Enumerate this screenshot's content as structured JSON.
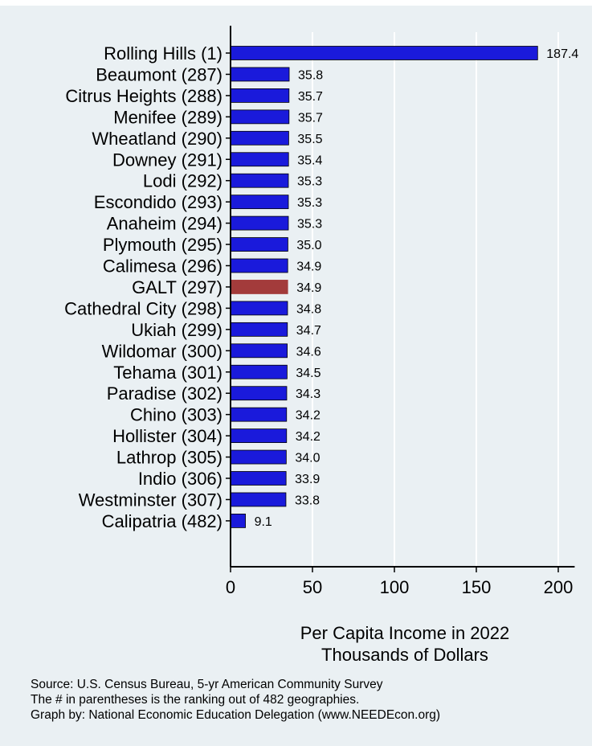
{
  "chart_data": {
    "type": "bar",
    "orientation": "horizontal",
    "categories": [
      "Rolling Hills  (1)",
      "Beaumont (287)",
      "Citrus Heights (288)",
      "Menifee (289)",
      "Wheatland (290)",
      "Downey (291)",
      "Lodi (292)",
      "Escondido (293)",
      "Anaheim (294)",
      "Plymouth (295)",
      "Calimesa (296)",
      "GALT (297)",
      "Cathedral City (298)",
      "Ukiah (299)",
      "Wildomar (300)",
      "Tehama (301)",
      "Paradise (302)",
      "Chino (303)",
      "Hollister (304)",
      "Lathrop (305)",
      "Indio (306)",
      "Westminster (307)",
      "Calipatria (482)"
    ],
    "values": [
      187.4,
      35.8,
      35.7,
      35.7,
      35.5,
      35.4,
      35.3,
      35.3,
      35.3,
      35.0,
      34.9,
      34.9,
      34.8,
      34.7,
      34.6,
      34.5,
      34.3,
      34.2,
      34.2,
      34.0,
      33.9,
      33.8,
      9.1
    ],
    "value_labels": [
      "187.4",
      "35.8",
      "35.7",
      "35.7",
      "35.5",
      "35.4",
      "35.3",
      "35.3",
      "35.3",
      "35.0",
      "34.9",
      "34.9",
      "34.8",
      "34.7",
      "34.6",
      "34.5",
      "34.3",
      "34.2",
      "34.2",
      "34.0",
      "33.9",
      "33.8",
      "9.1"
    ],
    "highlight_category": "GALT (297)",
    "xlim": [
      0,
      210
    ],
    "xticks": [
      0,
      50,
      100,
      150,
      200
    ],
    "grid": true,
    "xlabel_line1": "Per Capita Income in 2022",
    "xlabel_line2": "Thousands of Dollars",
    "colors": {
      "bar": "#1a1adb",
      "highlight": "#a33b3b",
      "grid": "#ffffff",
      "background": "#eaf0f3"
    }
  },
  "notes": {
    "source": "Source: U.S. Census Bureau, 5-yr American Community Survey",
    "ranking": "The # in parentheses is the ranking out of 482 geographies.",
    "credit": "Graph by: National Economic Education Delegation (www.NEEDEcon.org)"
  }
}
